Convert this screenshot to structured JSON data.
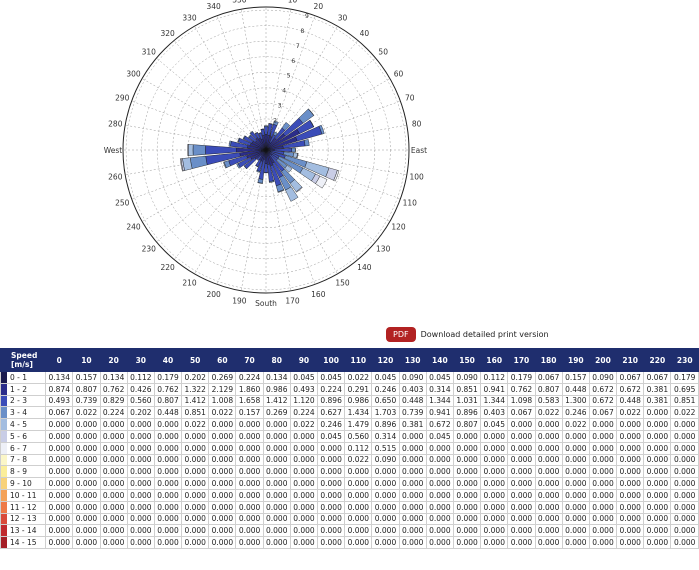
{
  "chart_data": {
    "type": "windrose",
    "direction_labels": {
      "0": "North",
      "90": "East",
      "180": "South",
      "270": "West"
    },
    "direction_ticks": [
      0,
      10,
      20,
      30,
      40,
      50,
      60,
      70,
      80,
      90,
      100,
      110,
      120,
      130,
      140,
      150,
      160,
      170,
      180,
      190,
      200,
      210,
      220,
      230,
      240,
      250,
      260,
      270,
      280,
      290,
      300,
      310,
      320,
      330,
      340,
      350
    ],
    "radial_ticks": [
      0,
      1,
      2,
      3,
      4,
      5,
      6,
      7,
      8,
      9
    ],
    "rose_directions": [
      0,
      10,
      20,
      30,
      40,
      50,
      60,
      70,
      80,
      90,
      100,
      110,
      120,
      130,
      140,
      150,
      160,
      170,
      180,
      190,
      200,
      210,
      220,
      230,
      240,
      250,
      260,
      270,
      280,
      290,
      300,
      310,
      320,
      330,
      340,
      350
    ],
    "rose_series": [
      {
        "name": "0 - 1",
        "color": "#1a1a4e",
        "values": [
          0.134,
          0.157,
          0.134,
          0.112,
          0.179,
          0.202,
          0.269,
          0.224,
          0.134,
          0.045,
          0.045,
          0.022,
          0.045,
          0.09,
          0.045,
          0.09,
          0.112,
          0.179,
          0.067,
          0.157,
          0.09,
          0.067,
          0.067,
          0.179,
          0.2,
          0.3,
          0.3,
          0.3,
          0.2,
          0.15,
          0.2,
          0.15,
          0.15,
          0.15,
          0.15,
          0.15
        ]
      },
      {
        "name": "1 - 2",
        "color": "#2b2d8a",
        "values": [
          0.874,
          0.807,
          0.762,
          0.426,
          0.762,
          1.322,
          2.129,
          1.86,
          0.986,
          0.493,
          0.224,
          0.291,
          0.246,
          0.403,
          0.314,
          0.851,
          0.941,
          0.762,
          0.807,
          0.448,
          0.672,
          0.672,
          0.381,
          0.695,
          0.9,
          1.0,
          1.4,
          1.6,
          1.0,
          0.9,
          0.8,
          0.7,
          0.8,
          0.7,
          0.6,
          0.8
        ]
      },
      {
        "name": "2 - 3",
        "color": "#3b4cb8",
        "values": [
          0.493,
          0.739,
          0.829,
          0.56,
          0.807,
          1.412,
          1.008,
          1.658,
          1.412,
          1.12,
          0.896,
          0.986,
          0.65,
          0.448,
          1.344,
          1.031,
          1.344,
          1.098,
          0.583,
          1.3,
          0.672,
          0.448,
          0.381,
          0.851,
          0.9,
          1.2,
          2.2,
          2.0,
          1.1,
          0.8,
          0.6,
          0.5,
          0.5,
          0.4,
          0.4,
          0.4
        ]
      },
      {
        "name": "3 - 4",
        "color": "#6a8fc8",
        "values": [
          0.067,
          0.022,
          0.224,
          0.202,
          0.448,
          0.851,
          0.022,
          0.157,
          0.269,
          0.224,
          0.627,
          1.434,
          1.703,
          0.739,
          0.941,
          0.896,
          0.403,
          0.067,
          0.022,
          0.246,
          0.067,
          0.022,
          0.0,
          0.022,
          0.1,
          0.3,
          1.0,
          0.8,
          0.1,
          0.05,
          0.05,
          0.05,
          0.05,
          0.02,
          0.02,
          0.02
        ]
      },
      {
        "name": "4 - 5",
        "color": "#a3bde0",
        "values": [
          0.0,
          0.0,
          0.0,
          0.0,
          0.0,
          0.022,
          0.0,
          0.0,
          0.0,
          0.022,
          0.246,
          1.479,
          0.896,
          0.381,
          0.672,
          0.807,
          0.045,
          0.0,
          0.0,
          0.022,
          0.0,
          0.0,
          0.0,
          0.0,
          0.0,
          0.05,
          0.5,
          0.3,
          0.0,
          0.0,
          0.0,
          0.0,
          0.0,
          0.0,
          0.0,
          0.0
        ]
      },
      {
        "name": "5 - 6",
        "color": "#c9cde6",
        "values": [
          0.0,
          0.0,
          0.0,
          0.0,
          0.0,
          0.0,
          0.0,
          0.0,
          0.0,
          0.0,
          0.045,
          0.56,
          0.314,
          0.0,
          0.045,
          0.0,
          0.0,
          0.0,
          0.0,
          0.0,
          0.0,
          0.0,
          0.0,
          0.0,
          0.0,
          0.0,
          0.1,
          0.05,
          0.0,
          0.0,
          0.0,
          0.0,
          0.0,
          0.0,
          0.0,
          0.0
        ]
      },
      {
        "name": "6 - 7",
        "color": "#eef0f7",
        "values": [
          0.0,
          0.0,
          0.0,
          0.0,
          0.0,
          0.0,
          0.0,
          0.0,
          0.0,
          0.0,
          0.0,
          0.112,
          0.515,
          0.0,
          0.0,
          0.0,
          0.0,
          0.0,
          0.0,
          0.0,
          0.0,
          0.0,
          0.0,
          0.0,
          0.0,
          0.0,
          0.05,
          0.0,
          0.0,
          0.0,
          0.0,
          0.0,
          0.0,
          0.0,
          0.0,
          0.0
        ]
      }
    ]
  },
  "pdf_button": {
    "label": "PDF",
    "link_text": "Download detailed print version"
  },
  "table": {
    "speed_header": [
      "Speed",
      "[m/s]"
    ],
    "columns": [
      "0",
      "10",
      "20",
      "30",
      "40",
      "50",
      "60",
      "70",
      "80",
      "90",
      "100",
      "110",
      "120",
      "130",
      "140",
      "150",
      "160",
      "170",
      "180",
      "190",
      "200",
      "210",
      "220",
      "230"
    ],
    "rows": [
      {
        "speed": "0 - 1",
        "color": "#1a1a4e",
        "values": [
          "0.134",
          "0.157",
          "0.134",
          "0.112",
          "0.179",
          "0.202",
          "0.269",
          "0.224",
          "0.134",
          "0.045",
          "0.045",
          "0.022",
          "0.045",
          "0.090",
          "0.045",
          "0.090",
          "0.112",
          "0.179",
          "0.067",
          "0.157",
          "0.090",
          "0.067",
          "0.067",
          "0.179"
        ]
      },
      {
        "speed": "1 - 2",
        "color": "#2b2d8a",
        "values": [
          "0.874",
          "0.807",
          "0.762",
          "0.426",
          "0.762",
          "1.322",
          "2.129",
          "1.860",
          "0.986",
          "0.493",
          "0.224",
          "0.291",
          "0.246",
          "0.403",
          "0.314",
          "0.851",
          "0.941",
          "0.762",
          "0.807",
          "0.448",
          "0.672",
          "0.672",
          "0.381",
          "0.695"
        ]
      },
      {
        "speed": "2 - 3",
        "color": "#3b4cb8",
        "values": [
          "0.493",
          "0.739",
          "0.829",
          "0.560",
          "0.807",
          "1.412",
          "1.008",
          "1.658",
          "1.412",
          "1.120",
          "0.896",
          "0.986",
          "0.650",
          "0.448",
          "1.344",
          "1.031",
          "1.344",
          "1.098",
          "0.583",
          "1.300",
          "0.672",
          "0.448",
          "0.381",
          "0.851"
        ]
      },
      {
        "speed": "3 - 4",
        "color": "#6a8fc8",
        "values": [
          "0.067",
          "0.022",
          "0.224",
          "0.202",
          "0.448",
          "0.851",
          "0.022",
          "0.157",
          "0.269",
          "0.224",
          "0.627",
          "1.434",
          "1.703",
          "0.739",
          "0.941",
          "0.896",
          "0.403",
          "0.067",
          "0.022",
          "0.246",
          "0.067",
          "0.022",
          "0.000",
          "0.022"
        ]
      },
      {
        "speed": "4 - 5",
        "color": "#a3bde0",
        "values": [
          "0.000",
          "0.000",
          "0.000",
          "0.000",
          "0.000",
          "0.022",
          "0.000",
          "0.000",
          "0.000",
          "0.022",
          "0.246",
          "1.479",
          "0.896",
          "0.381",
          "0.672",
          "0.807",
          "0.045",
          "0.000",
          "0.000",
          "0.022",
          "0.000",
          "0.000",
          "0.000",
          "0.000"
        ]
      },
      {
        "speed": "5 - 6",
        "color": "#c9cde6",
        "values": [
          "0.000",
          "0.000",
          "0.000",
          "0.000",
          "0.000",
          "0.000",
          "0.000",
          "0.000",
          "0.000",
          "0.000",
          "0.045",
          "0.560",
          "0.314",
          "0.000",
          "0.045",
          "0.000",
          "0.000",
          "0.000",
          "0.000",
          "0.000",
          "0.000",
          "0.000",
          "0.000",
          "0.000"
        ]
      },
      {
        "speed": "6 - 7",
        "color": "#eef0f7",
        "values": [
          "0.000",
          "0.000",
          "0.000",
          "0.000",
          "0.000",
          "0.000",
          "0.000",
          "0.000",
          "0.000",
          "0.000",
          "0.000",
          "0.112",
          "0.515",
          "0.000",
          "0.000",
          "0.000",
          "0.000",
          "0.000",
          "0.000",
          "0.000",
          "0.000",
          "0.000",
          "0.000",
          "0.000"
        ]
      },
      {
        "speed": "7 - 8",
        "color": "#fbf6c8",
        "values": [
          "0.000",
          "0.000",
          "0.000",
          "0.000",
          "0.000",
          "0.000",
          "0.000",
          "0.000",
          "0.000",
          "0.000",
          "0.000",
          "0.022",
          "0.090",
          "0.000",
          "0.000",
          "0.000",
          "0.000",
          "0.000",
          "0.000",
          "0.000",
          "0.000",
          "0.000",
          "0.000",
          "0.000"
        ]
      },
      {
        "speed": "8 - 9",
        "color": "#fbee9a",
        "values": [
          "0.000",
          "0.000",
          "0.000",
          "0.000",
          "0.000",
          "0.000",
          "0.000",
          "0.000",
          "0.000",
          "0.000",
          "0.000",
          "0.000",
          "0.000",
          "0.000",
          "0.000",
          "0.000",
          "0.000",
          "0.000",
          "0.000",
          "0.000",
          "0.000",
          "0.000",
          "0.000",
          "0.000"
        ]
      },
      {
        "speed": "9 - 10",
        "color": "#f8d27a",
        "values": [
          "0.000",
          "0.000",
          "0.000",
          "0.000",
          "0.000",
          "0.000",
          "0.000",
          "0.000",
          "0.000",
          "0.000",
          "0.000",
          "0.000",
          "0.000",
          "0.000",
          "0.000",
          "0.000",
          "0.000",
          "0.000",
          "0.000",
          "0.000",
          "0.000",
          "0.000",
          "0.000",
          "0.000"
        ]
      },
      {
        "speed": "10 - 11",
        "color": "#f4a259",
        "values": [
          "0.000",
          "0.000",
          "0.000",
          "0.000",
          "0.000",
          "0.000",
          "0.000",
          "0.000",
          "0.000",
          "0.000",
          "0.000",
          "0.000",
          "0.000",
          "0.000",
          "0.000",
          "0.000",
          "0.000",
          "0.000",
          "0.000",
          "0.000",
          "0.000",
          "0.000",
          "0.000",
          "0.000"
        ]
      },
      {
        "speed": "11 - 12",
        "color": "#ee7a47",
        "values": [
          "0.000",
          "0.000",
          "0.000",
          "0.000",
          "0.000",
          "0.000",
          "0.000",
          "0.000",
          "0.000",
          "0.000",
          "0.000",
          "0.000",
          "0.000",
          "0.000",
          "0.000",
          "0.000",
          "0.000",
          "0.000",
          "0.000",
          "0.000",
          "0.000",
          "0.000",
          "0.000",
          "0.000"
        ]
      },
      {
        "speed": "12 - 13",
        "color": "#d94b3a",
        "values": [
          "0.000",
          "0.000",
          "0.000",
          "0.000",
          "0.000",
          "0.000",
          "0.000",
          "0.000",
          "0.000",
          "0.000",
          "0.000",
          "0.000",
          "0.000",
          "0.000",
          "0.000",
          "0.000",
          "0.000",
          "0.000",
          "0.000",
          "0.000",
          "0.000",
          "0.000",
          "0.000",
          "0.000"
        ]
      },
      {
        "speed": "13 - 14",
        "color": "#c02a2e",
        "values": [
          "0.000",
          "0.000",
          "0.000",
          "0.000",
          "0.000",
          "0.000",
          "0.000",
          "0.000",
          "0.000",
          "0.000",
          "0.000",
          "0.000",
          "0.000",
          "0.000",
          "0.000",
          "0.000",
          "0.000",
          "0.000",
          "0.000",
          "0.000",
          "0.000",
          "0.000",
          "0.000",
          "0.000"
        ]
      },
      {
        "speed": "14 - 15",
        "color": "#a51f27",
        "values": [
          "0.000",
          "0.000",
          "0.000",
          "0.000",
          "0.000",
          "0.000",
          "0.000",
          "0.000",
          "0.000",
          "0.000",
          "0.000",
          "0.000",
          "0.000",
          "0.000",
          "0.000",
          "0.000",
          "0.000",
          "0.000",
          "0.000",
          "0.000",
          "0.000",
          "0.000",
          "0.000",
          "0.000"
        ]
      }
    ]
  }
}
